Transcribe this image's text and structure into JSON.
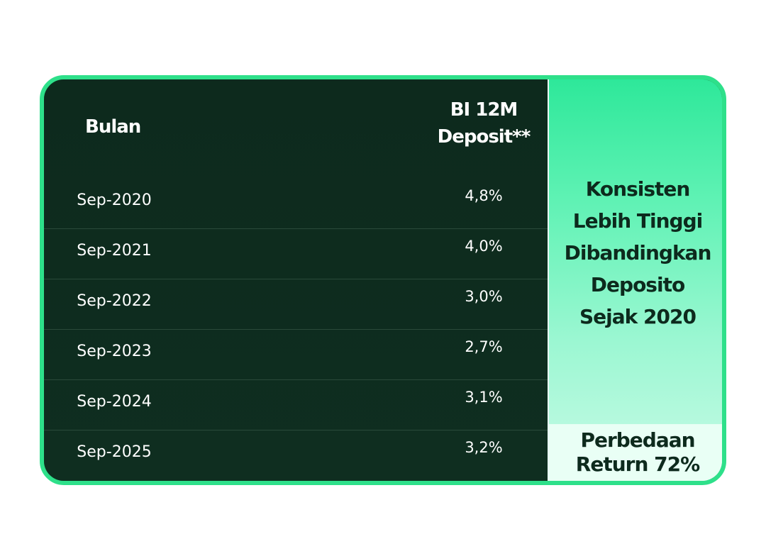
{
  "table": {
    "header_month": "Bulan",
    "header_deposit_line1": "BI 12M",
    "header_deposit_line2": "Deposit**",
    "rows": [
      {
        "month": "Sep-2020",
        "value": "4,8%"
      },
      {
        "month": "Sep-2021",
        "value": "4,0%"
      },
      {
        "month": "Sep-2022",
        "value": "3,0%"
      },
      {
        "month": "Sep-2023",
        "value": "2,7%"
      },
      {
        "month": "Sep-2024",
        "value": "3,1%"
      },
      {
        "month": "Sep-2025",
        "value": "3,2%"
      }
    ]
  },
  "highlight": {
    "lines": [
      "Konsisten",
      "Lebih Tinggi",
      "Dibandingkan",
      "Deposito",
      "Sejak 2020"
    ],
    "bottom_line1": "Perbedaan",
    "bottom_line2": "Return 72%"
  },
  "colors": {
    "border": "#2ee08a",
    "table_bg": "#0f2c1f",
    "highlight_top": "#2ee89a",
    "highlight_bottom": "#c8fbe6",
    "text_dark": "#0d2a1d"
  }
}
